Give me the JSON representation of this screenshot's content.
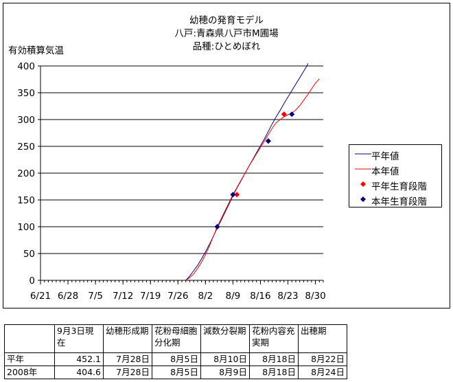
{
  "chart_data": {
    "type": "line",
    "title_lines": [
      "幼穂の発育モデル",
      "八戸:青森県八戸市M圃場",
      "品種:ひとめぼれ"
    ],
    "ylabel": "有効積算気温",
    "ylim": [
      0,
      400
    ],
    "yticks": [
      0,
      50,
      100,
      150,
      200,
      250,
      300,
      350,
      400
    ],
    "xlim": [
      "2008-06-21",
      "2008-09-01"
    ],
    "xticks": [
      {
        "date": "2008-06-21",
        "label": "6/21"
      },
      {
        "date": "2008-06-28",
        "label": "6/28"
      },
      {
        "date": "2008-07-05",
        "label": "7/5"
      },
      {
        "date": "2008-07-12",
        "label": "7/12"
      },
      {
        "date": "2008-07-19",
        "label": "7/19"
      },
      {
        "date": "2008-07-26",
        "label": "7/26"
      },
      {
        "date": "2008-08-02",
        "label": "8/2"
      },
      {
        "date": "2008-08-09",
        "label": "8/9"
      },
      {
        "date": "2008-08-16",
        "label": "8/16"
      },
      {
        "date": "2008-08-23",
        "label": "8/23"
      },
      {
        "date": "2008-08-30",
        "label": "8/30"
      }
    ],
    "grid": true,
    "legend_position": "right",
    "series": [
      {
        "name": "平年値",
        "kind": "line",
        "color": "#000080",
        "points": [
          [
            "2008-07-28",
            0
          ],
          [
            "2008-07-29",
            8
          ],
          [
            "2008-07-30",
            18
          ],
          [
            "2008-07-31",
            28
          ],
          [
            "2008-08-01",
            40
          ],
          [
            "2008-08-02",
            53
          ],
          [
            "2008-08-03",
            67
          ],
          [
            "2008-08-04",
            82
          ],
          [
            "2008-08-05",
            98
          ],
          [
            "2008-08-06",
            112
          ],
          [
            "2008-08-07",
            127
          ],
          [
            "2008-08-08",
            142
          ],
          [
            "2008-08-09",
            158
          ],
          [
            "2008-08-10",
            172
          ],
          [
            "2008-08-11",
            185
          ],
          [
            "2008-08-12",
            199
          ],
          [
            "2008-08-13",
            212
          ],
          [
            "2008-08-14",
            225
          ],
          [
            "2008-08-15",
            238
          ],
          [
            "2008-08-16",
            251
          ],
          [
            "2008-08-17",
            264
          ],
          [
            "2008-08-18",
            278
          ],
          [
            "2008-08-19",
            292
          ],
          [
            "2008-08-20",
            305
          ],
          [
            "2008-08-21",
            317
          ],
          [
            "2008-08-22",
            330
          ],
          [
            "2008-08-23",
            342
          ],
          [
            "2008-08-24",
            354
          ],
          [
            "2008-08-25",
            366
          ],
          [
            "2008-08-26",
            378
          ],
          [
            "2008-08-27",
            390
          ],
          [
            "2008-08-28",
            402
          ],
          [
            "2008-08-28",
            405
          ]
        ]
      },
      {
        "name": "本年値",
        "kind": "line",
        "color": "#FF0000",
        "points": [
          [
            "2008-07-28",
            0
          ],
          [
            "2008-07-29",
            5
          ],
          [
            "2008-07-30",
            12
          ],
          [
            "2008-07-31",
            22
          ],
          [
            "2008-08-01",
            34
          ],
          [
            "2008-08-02",
            48
          ],
          [
            "2008-08-03",
            64
          ],
          [
            "2008-08-04",
            82
          ],
          [
            "2008-08-05",
            100
          ],
          [
            "2008-08-06",
            115
          ],
          [
            "2008-08-07",
            130
          ],
          [
            "2008-08-08",
            145
          ],
          [
            "2008-08-09",
            160
          ],
          [
            "2008-08-10",
            173
          ],
          [
            "2008-08-11",
            186
          ],
          [
            "2008-08-12",
            199
          ],
          [
            "2008-08-13",
            212
          ],
          [
            "2008-08-14",
            224
          ],
          [
            "2008-08-15",
            236
          ],
          [
            "2008-08-16",
            248
          ],
          [
            "2008-08-17",
            260
          ],
          [
            "2008-08-18",
            272
          ],
          [
            "2008-08-19",
            284
          ],
          [
            "2008-08-20",
            294
          ],
          [
            "2008-08-21",
            300
          ],
          [
            "2008-08-22",
            305
          ],
          [
            "2008-08-23",
            309
          ],
          [
            "2008-08-24",
            312
          ],
          [
            "2008-08-25",
            318
          ],
          [
            "2008-08-26",
            326
          ],
          [
            "2008-08-27",
            336
          ],
          [
            "2008-08-28",
            346
          ],
          [
            "2008-08-29",
            357
          ],
          [
            "2008-08-30",
            368
          ],
          [
            "2008-08-31",
            376
          ]
        ]
      },
      {
        "name": "平年生育段階",
        "kind": "marker",
        "color": "#FF0000",
        "points": [
          [
            "2008-08-05",
            100
          ],
          [
            "2008-08-10",
            160
          ],
          [
            "2008-08-18",
            260
          ],
          [
            "2008-08-22",
            310
          ]
        ]
      },
      {
        "name": "本年生育段階",
        "kind": "marker",
        "color": "#000080",
        "points": [
          [
            "2008-08-05",
            100
          ],
          [
            "2008-08-09",
            160
          ],
          [
            "2008-08-18",
            260
          ],
          [
            "2008-08-24",
            310
          ]
        ]
      }
    ]
  },
  "table": {
    "header": [
      "",
      "9月3日現在",
      "幼穂形成期",
      "花粉母細胞分化期",
      "減数分裂期",
      "花粉内容充実期",
      "出穂期"
    ],
    "rows": [
      [
        "平年",
        "452.1",
        "7月28日",
        "8月5日",
        "8月10日",
        "8月18日",
        "8月22日"
      ],
      [
        "2008年",
        "404.6",
        "7月28日",
        "8月5日",
        "8月9日",
        "8月18日",
        "8月24日"
      ]
    ]
  }
}
